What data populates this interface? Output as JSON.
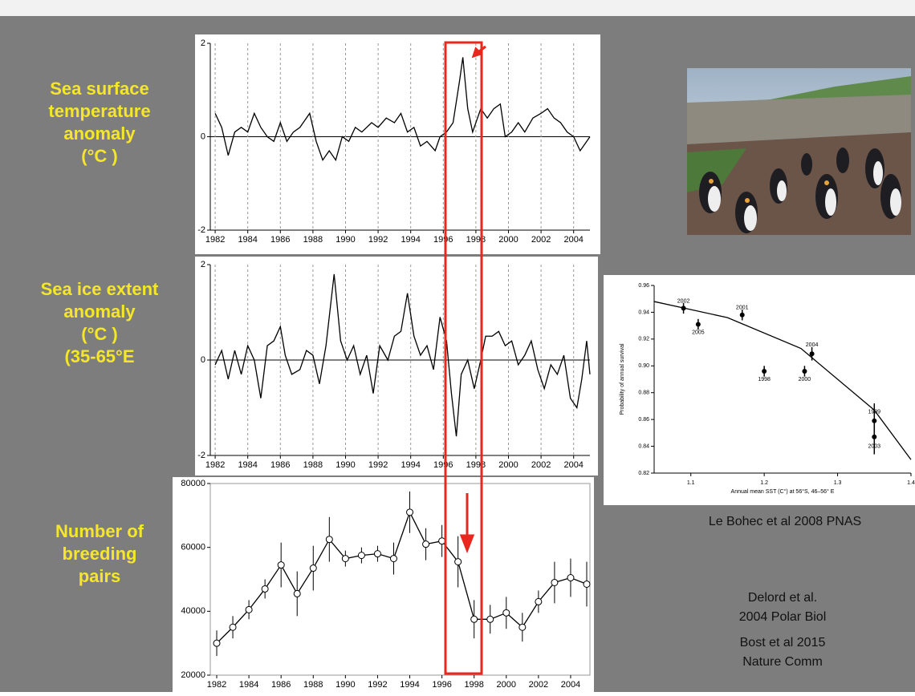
{
  "chart_data": [
    {
      "type": "line",
      "xlim": [
        1981.7,
        2005.0
      ],
      "ylim": [
        -2,
        2
      ],
      "yticks": [
        -2,
        0,
        2
      ],
      "xticks": [
        1982,
        1984,
        1986,
        1988,
        1990,
        1992,
        1994,
        1996,
        1998,
        2000,
        2002,
        2004
      ],
      "grid": true,
      "color": "#000000",
      "x": [
        1982.0,
        1982.4,
        1982.8,
        1983.2,
        1983.6,
        1984.0,
        1984.4,
        1984.8,
        1985.2,
        1985.6,
        1986.0,
        1986.4,
        1986.8,
        1987.2,
        1987.8,
        1988.2,
        1988.6,
        1989.0,
        1989.4,
        1989.8,
        1990.2,
        1990.6,
        1991.0,
        1991.6,
        1992.0,
        1992.5,
        1993.0,
        1993.4,
        1993.8,
        1994.2,
        1994.6,
        1995.0,
        1995.5,
        1995.8,
        1996.2,
        1996.6,
        1997.0,
        1997.2,
        1997.5,
        1997.8,
        1998.3,
        1998.7,
        1999.1,
        1999.5,
        1999.8,
        2000.2,
        2000.6,
        2001.0,
        2001.5,
        2002.0,
        2002.4,
        2002.8,
        2003.2,
        2003.6,
        2004.0,
        2004.4,
        2004.8,
        2005.0
      ],
      "values": [
        0.5,
        0.2,
        -0.4,
        0.1,
        0.2,
        0.1,
        0.5,
        0.2,
        0.0,
        -0.1,
        0.3,
        -0.1,
        0.1,
        0.2,
        0.5,
        -0.1,
        -0.5,
        -0.3,
        -0.5,
        0.0,
        -0.1,
        0.2,
        0.1,
        0.3,
        0.2,
        0.4,
        0.3,
        0.5,
        0.1,
        0.2,
        -0.2,
        -0.1,
        -0.3,
        0.0,
        0.1,
        0.3,
        1.2,
        1.7,
        0.6,
        0.1,
        0.6,
        0.4,
        0.6,
        0.7,
        0.0,
        0.1,
        0.3,
        0.1,
        0.4,
        0.5,
        0.6,
        0.4,
        0.3,
        0.1,
        0.0,
        -0.3,
        -0.1,
        0.0
      ],
      "label": "Sea surface temperature anomaly (°C )"
    },
    {
      "type": "line",
      "xlim": [
        1981.7,
        2005.0
      ],
      "ylim": [
        -2,
        2
      ],
      "yticks": [
        -2,
        0,
        2
      ],
      "xticks": [
        1982,
        1984,
        1986,
        1988,
        1990,
        1992,
        1994,
        1996,
        1998,
        2000,
        2002,
        2004
      ],
      "grid": true,
      "color": "#000000",
      "x": [
        1982.0,
        1982.4,
        1982.8,
        1983.2,
        1983.6,
        1984.0,
        1984.4,
        1984.8,
        1985.2,
        1985.6,
        1986.0,
        1986.3,
        1986.7,
        1987.2,
        1987.6,
        1988.0,
        1988.4,
        1988.8,
        1989.3,
        1989.7,
        1990.1,
        1990.5,
        1990.9,
        1991.3,
        1991.7,
        1992.1,
        1992.6,
        1993.0,
        1993.4,
        1993.8,
        1994.2,
        1994.6,
        1995.0,
        1995.4,
        1995.8,
        1996.2,
        1996.5,
        1996.8,
        1997.1,
        1997.5,
        1997.9,
        1998.3,
        1998.6,
        1999.0,
        1999.4,
        1999.8,
        2000.2,
        2000.6,
        2001.0,
        2001.4,
        2001.8,
        2002.2,
        2002.6,
        2003.0,
        2003.4,
        2003.8,
        2004.2,
        2004.5,
        2004.8,
        2005.0
      ],
      "values": [
        -0.1,
        0.2,
        -0.4,
        0.2,
        -0.3,
        0.3,
        0.0,
        -0.8,
        0.3,
        0.4,
        0.7,
        0.1,
        -0.3,
        -0.2,
        0.2,
        0.1,
        -0.5,
        0.3,
        1.8,
        0.4,
        0.0,
        0.3,
        -0.3,
        0.1,
        -0.7,
        0.3,
        0.0,
        0.5,
        0.6,
        1.4,
        0.5,
        0.1,
        0.3,
        -0.2,
        0.9,
        0.4,
        -0.7,
        -1.6,
        -0.3,
        0.0,
        -0.6,
        0.0,
        0.5,
        0.5,
        0.6,
        0.3,
        0.4,
        -0.1,
        0.1,
        0.4,
        -0.2,
        -0.6,
        -0.1,
        -0.3,
        0.1,
        -0.8,
        -1.0,
        -0.4,
        0.4,
        -0.3
      ],
      "label": "Sea ice extent anomaly (°C ) (35-65°E )"
    },
    {
      "type": "line",
      "markers": true,
      "xlim": [
        1981.6,
        2005.2
      ],
      "ylim": [
        20000,
        80000
      ],
      "yticks": [
        20000,
        40000,
        60000,
        80000
      ],
      "xticks": [
        1982,
        1984,
        1986,
        1988,
        1990,
        1992,
        1994,
        1996,
        1998,
        2000,
        2002,
        2004
      ],
      "grid": false,
      "color": "#000000",
      "x": [
        1982,
        1983,
        1984,
        1985,
        1986,
        1987,
        1988,
        1989,
        1990,
        1991,
        1992,
        1993,
        1994,
        1995,
        1996,
        1997,
        1998,
        1999,
        2000,
        2001,
        2002,
        2003,
        2004,
        2005
      ],
      "values": [
        30000,
        35000,
        40500,
        47000,
        54500,
        45500,
        53500,
        62500,
        56500,
        57500,
        58000,
        56500,
        71000,
        61000,
        62000,
        55500,
        37500,
        37500,
        39500,
        35000,
        43000,
        49000,
        50500,
        48500
      ],
      "errors": [
        4000,
        3500,
        3000,
        3000,
        7000,
        7000,
        7000,
        7000,
        2500,
        2500,
        2500,
        5000,
        6500,
        5000,
        5000,
        8000,
        6000,
        4500,
        5000,
        4500,
        3500,
        6500,
        6000,
        7000
      ],
      "label": "Number of breeding pairs"
    },
    {
      "type": "scatter",
      "xlim": [
        1.05,
        1.4
      ],
      "ylim": [
        0.82,
        0.96
      ],
      "xticks": [
        1.1,
        1.2,
        1.3,
        1.4
      ],
      "yticks": [
        0.82,
        0.84,
        0.86,
        0.88,
        {
          "value": 0.9,
          "label": "0.90"
        },
        0.92,
        0.94,
        0.96
      ],
      "xlabel": "Annual mean SST (C°) at 56°S, 46–56° E",
      "ylabel": "Probability of annual survival",
      "color": "#000000",
      "x": [
        1.09,
        1.11,
        1.17,
        1.2,
        1.255,
        1.265,
        1.35,
        1.35
      ],
      "values": [
        0.943,
        0.931,
        0.938,
        0.896,
        0.896,
        0.909,
        0.859,
        0.847
      ],
      "errors": [
        0.004,
        0.004,
        0.004,
        0.004,
        0.004,
        0.005,
        0.013,
        0.013
      ],
      "point_labels": [
        "2002",
        "2005",
        "2001",
        "1998",
        "2000",
        "2004",
        "1999",
        "2003"
      ],
      "fit_x": [
        1.05,
        1.15,
        1.25,
        1.35,
        1.4
      ],
      "fit_y": [
        0.948,
        0.936,
        0.913,
        0.867,
        0.83
      ],
      "caption": "Le Bohec et al 2008 PNAS"
    }
  ],
  "references": [
    "Delord et al.",
    "2004 Polar Biol",
    "Bost et al  2015",
    "Nature Comm"
  ]
}
